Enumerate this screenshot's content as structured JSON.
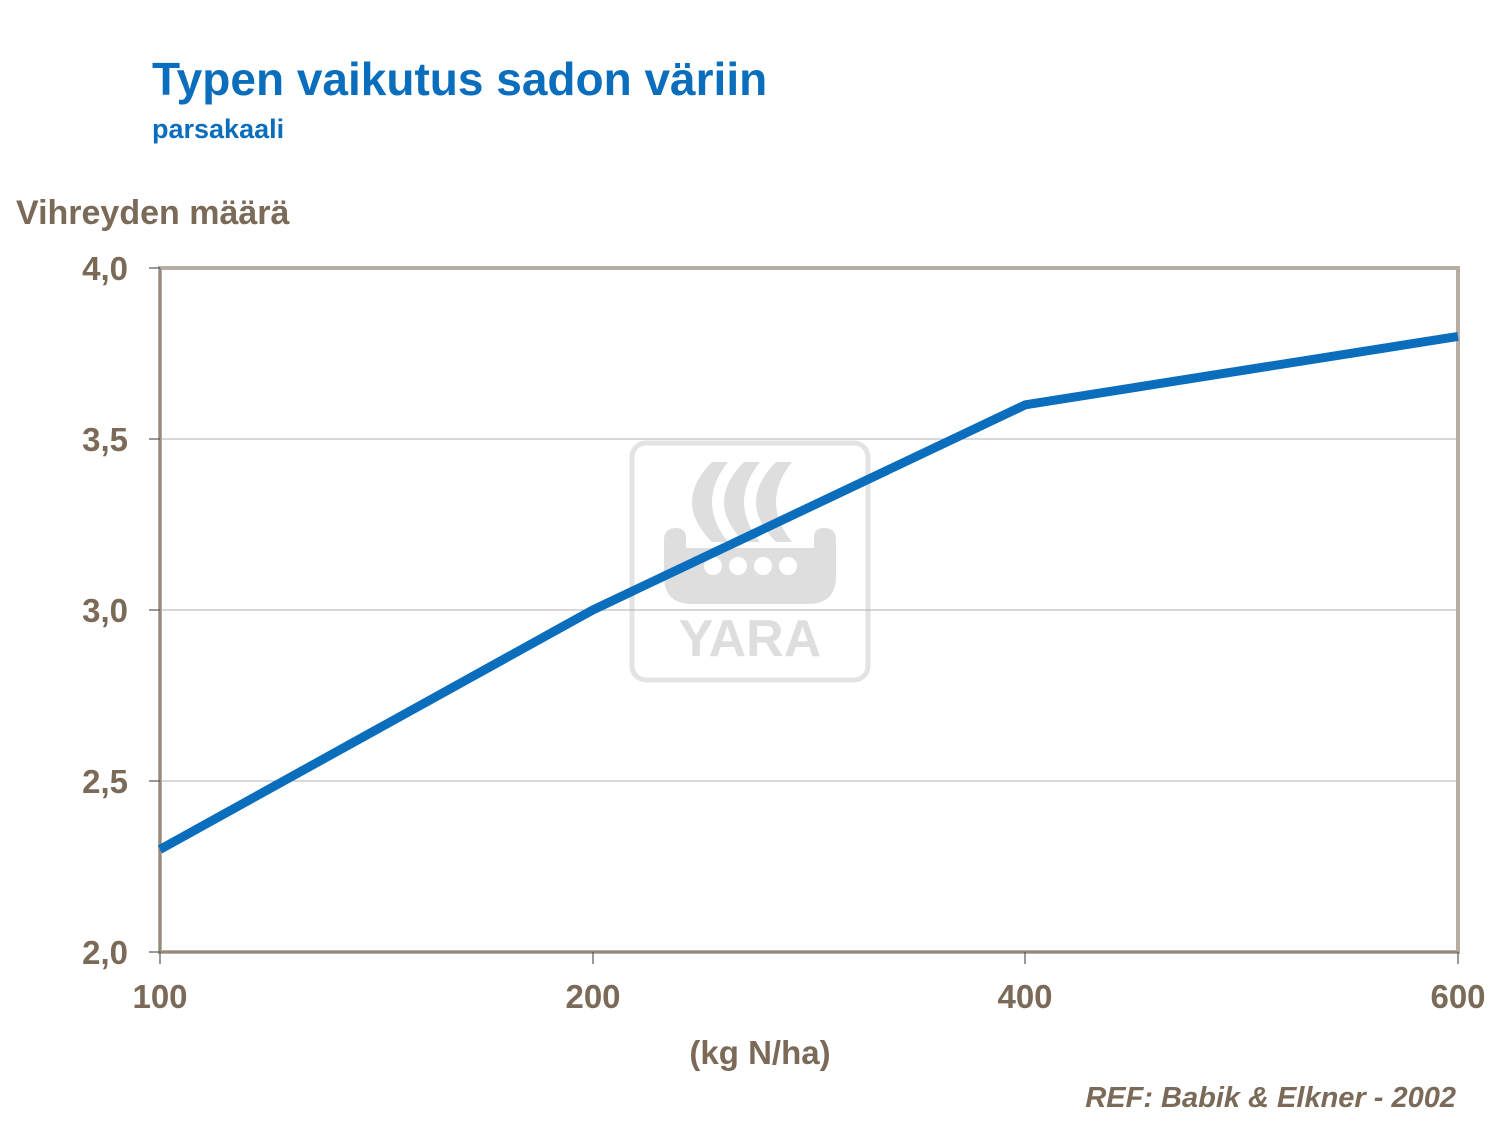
{
  "header": {
    "title": "Typen vaikutus sadon väriin",
    "subtitle": "parsakaali"
  },
  "watermark": {
    "logo_text": "YARA",
    "icon": "yara-viking-ship-icon"
  },
  "reference": "REF: Babik & Elkner - 2002",
  "colors": {
    "title": "#0a6ebd",
    "line": "#0a6ebd",
    "axis_text": "#7a6a57",
    "frame": "#b8ada1",
    "grid": "#b0b0b0",
    "watermark": "#dcdcdc"
  },
  "chart_data": {
    "type": "line",
    "title": "Typen vaikutus sadon väriin",
    "subtitle": "parsakaali",
    "xlabel": "(kg N/ha)",
    "ylabel": "Vihreyden määrä",
    "categories": [
      "100",
      "200",
      "400",
      "600"
    ],
    "x_tick_labels": [
      "100",
      "200",
      "400",
      "600"
    ],
    "y_tick_labels": [
      "4,0",
      "3,5",
      "3,0",
      "2,5",
      "2,0"
    ],
    "series": [
      {
        "name": "Vihreyden määrä",
        "values": [
          2.3,
          3.0,
          3.6,
          3.8
        ]
      }
    ],
    "ylim": [
      2.0,
      4.0
    ],
    "grid": true,
    "legend": "none",
    "annotation": "REF: Babik & Elkner - 2002"
  }
}
